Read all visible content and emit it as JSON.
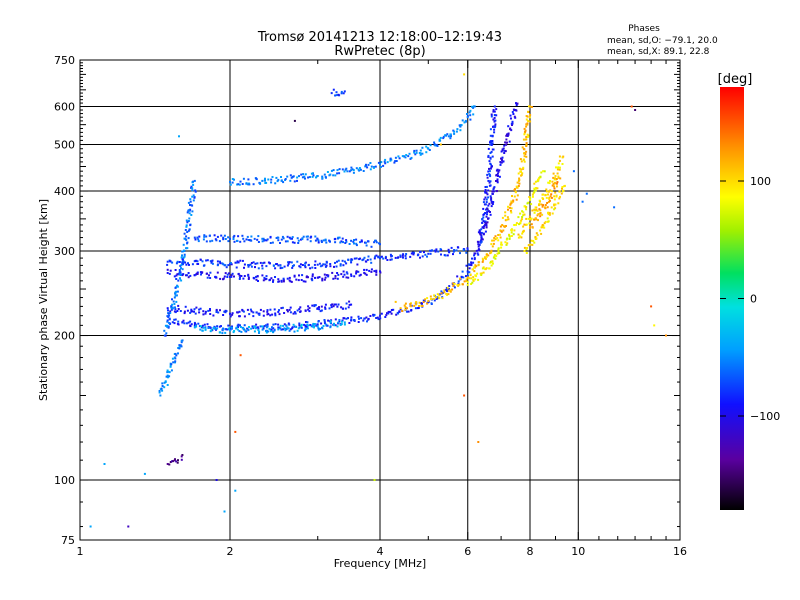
{
  "chart_data": {
    "type": "scatter",
    "title_line1": "Tromsø 20141213 12:18:00–12:19:43",
    "title_line2": "RwPretec (8p)",
    "stats": {
      "heading": "Phases",
      "line_o": "mean, sd,O: −79.1, 20.0",
      "line_x": "mean, sd,X:  89.1, 22.8"
    },
    "xlabel": "Frequency [MHz]",
    "ylabel": "Stationary phase Virtual Height [km]",
    "x_scale": "log",
    "y_scale": "log",
    "xlim": [
      1,
      16
    ],
    "ylim": [
      75,
      750
    ],
    "x_ticks": [
      1,
      2,
      4,
      6,
      8,
      10,
      16
    ],
    "x_tick_labels": [
      "1",
      "2",
      "4",
      "6",
      "8",
      "10",
      "16"
    ],
    "x_minor_ticks": [
      3,
      5,
      7,
      9,
      11,
      12,
      13,
      14,
      15
    ],
    "y_ticks": [
      75,
      100,
      200,
      300,
      400,
      500,
      600,
      750
    ],
    "y_tick_labels": [
      "75",
      "100",
      "200",
      "300",
      "400",
      "500",
      "600",
      "750"
    ],
    "grid_x": [
      2,
      4,
      6,
      8,
      10
    ],
    "grid_y": [
      100,
      200,
      300,
      400,
      500,
      600
    ],
    "grid": true,
    "colorbar": {
      "label": "[deg]",
      "range": [
        -180,
        180
      ],
      "ticks": [
        100,
        0,
        -100
      ],
      "tick_labels": [
        "100",
        "0",
        "−100"
      ]
    },
    "series": [
      {
        "trace": "o-lower",
        "x": [
          1.5,
          1.7,
          2.0,
          2.5,
          3.0,
          3.5,
          4.0,
          4.5,
          5.0,
          5.5,
          6.0,
          6.2,
          6.4,
          6.5,
          6.6,
          6.7,
          6.8
        ],
        "y": [
          215,
          210,
          207,
          208,
          211,
          215,
          220,
          226,
          235,
          250,
          272,
          290,
          320,
          360,
          420,
          500,
          600
        ],
        "phase": -85
      },
      {
        "trace": "o-lower-cyan",
        "x": [
          1.7,
          2.0,
          2.5,
          3.0,
          3.4
        ],
        "y": [
          208,
          205,
          206,
          209,
          213
        ],
        "phase": -40
      },
      {
        "trace": "o-lower-thick",
        "x": [
          1.5,
          2.0,
          2.5,
          3.0,
          3.5
        ],
        "y": [
          228,
          222,
          224,
          228,
          232
        ],
        "phase": -90
      },
      {
        "trace": "x-lower",
        "x": [
          4.4,
          5.0,
          5.5,
          6.0,
          6.5,
          7.0,
          7.4,
          7.6,
          7.8,
          7.9,
          8.0
        ],
        "y": [
          228,
          236,
          248,
          264,
          290,
          330,
          380,
          420,
          480,
          550,
          600
        ],
        "phase": 110
      },
      {
        "trace": "x-lower-green",
        "x": [
          6.0,
          6.5,
          7.0,
          7.5,
          8.0,
          8.5
        ],
        "y": [
          255,
          275,
          305,
          340,
          385,
          440
        ],
        "phase": 85
      },
      {
        "trace": "o-upper",
        "x": [
          2.0,
          2.5,
          3.0,
          3.5,
          4.0,
          4.5,
          5.0,
          5.5,
          5.8,
          6.0,
          6.2
        ],
        "y": [
          418,
          422,
          430,
          442,
          455,
          470,
          490,
          520,
          545,
          570,
          600
        ],
        "phase": -55
      },
      {
        "trace": "o-mid",
        "x": [
          1.5,
          2.0,
          2.5,
          3.0,
          3.5,
          4.0,
          4.5,
          5.0,
          5.5,
          6.0
        ],
        "y": [
          285,
          282,
          280,
          281,
          284,
          290,
          293,
          296,
          299,
          302
        ],
        "phase": -80
      },
      {
        "trace": "o-mid-2",
        "x": [
          1.5,
          2.0,
          2.5,
          3.0,
          3.5,
          4.0
        ],
        "y": [
          270,
          265,
          262,
          264,
          268,
          272
        ],
        "phase": -95
      },
      {
        "trace": "o-2F",
        "x": [
          1.7,
          2.0,
          2.5,
          3.0,
          3.5,
          4.0
        ],
        "y": [
          320,
          318,
          316,
          317,
          315,
          310
        ],
        "phase": -70
      },
      {
        "trace": "x-right-a",
        "x": [
          7.8,
          8.2,
          8.6,
          9.0,
          9.4
        ],
        "y": [
          300,
          320,
          345,
          375,
          410
        ],
        "phase": 95
      },
      {
        "trace": "x-right-b",
        "x": [
          7.6,
          8.0,
          8.5,
          9.0,
          9.3
        ],
        "y": [
          320,
          350,
          385,
          430,
          470
        ],
        "phase": 100
      },
      {
        "trace": "x-right-c",
        "x": [
          8.0,
          8.4,
          8.8,
          9.2
        ],
        "y": [
          335,
          360,
          390,
          425
        ],
        "phase": 120
      },
      {
        "trace": "o-cusp-upper",
        "x": [
          6.3,
          6.5,
          6.7,
          6.9,
          7.1,
          7.3,
          7.5
        ],
        "y": [
          310,
          340,
          380,
          430,
          480,
          540,
          610
        ],
        "phase": -100
      },
      {
        "trace": "o-spread",
        "x": [
          1.48,
          1.55,
          1.62,
          1.7
        ],
        "y": [
          200,
          240,
          300,
          420
        ],
        "phase": -60
      },
      {
        "trace": "o-spread-b",
        "x": [
          1.45,
          1.5,
          1.55,
          1.6
        ],
        "y": [
          150,
          165,
          180,
          195
        ],
        "phase": -50
      },
      {
        "trace": "o-low",
        "x": [
          1.5,
          1.55,
          1.6
        ],
        "y": [
          108,
          110,
          112
        ],
        "phase": -140
      },
      {
        "trace": "o-top",
        "x": [
          3.2,
          3.4
        ],
        "y": [
          640,
          645
        ],
        "phase": -80
      }
    ],
    "stray_points": [
      {
        "x": 1.05,
        "y": 80,
        "phase": -40
      },
      {
        "x": 1.12,
        "y": 108,
        "phase": -40
      },
      {
        "x": 1.25,
        "y": 80,
        "phase": -120
      },
      {
        "x": 1.35,
        "y": 103,
        "phase": -40
      },
      {
        "x": 1.58,
        "y": 520,
        "phase": -40
      },
      {
        "x": 1.88,
        "y": 100,
        "phase": -100
      },
      {
        "x": 1.95,
        "y": 86,
        "phase": -40
      },
      {
        "x": 2.05,
        "y": 126,
        "phase": 150
      },
      {
        "x": 2.1,
        "y": 182,
        "phase": 150
      },
      {
        "x": 2.05,
        "y": 95,
        "phase": -40
      },
      {
        "x": 2.7,
        "y": 560,
        "phase": -160
      },
      {
        "x": 3.9,
        "y": 100,
        "phase": 70
      },
      {
        "x": 5.9,
        "y": 150,
        "phase": 150
      },
      {
        "x": 6.3,
        "y": 120,
        "phase": 130
      },
      {
        "x": 10.2,
        "y": 380,
        "phase": -60
      },
      {
        "x": 10.4,
        "y": 395,
        "phase": -60
      },
      {
        "x": 9.8,
        "y": 440,
        "phase": -60
      },
      {
        "x": 11.8,
        "y": 370,
        "phase": -60
      },
      {
        "x": 12.8,
        "y": 600,
        "phase": 150
      },
      {
        "x": 13.0,
        "y": 590,
        "phase": -150
      },
      {
        "x": 14.0,
        "y": 230,
        "phase": 150
      },
      {
        "x": 15.0,
        "y": 200,
        "phase": 130
      },
      {
        "x": 14.2,
        "y": 210,
        "phase": 90
      },
      {
        "x": 5.9,
        "y": 700,
        "phase": 100
      },
      {
        "x": 5.3,
        "y": 500,
        "phase": 110
      },
      {
        "x": 4.3,
        "y": 235,
        "phase": 110
      }
    ]
  }
}
